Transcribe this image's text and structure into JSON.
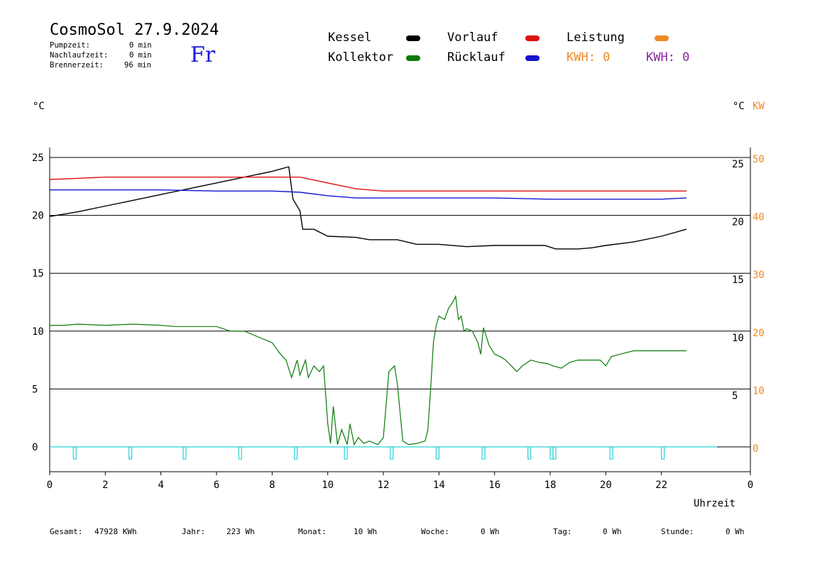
{
  "header": {
    "title": "CosmoSol 27.9.2024",
    "pump_label": "Pumpzeit:",
    "pump_value": "0 min",
    "after_label": "Nachlaufzeit:",
    "after_value": "0 min",
    "burner_label": "Brennerzeit:",
    "burner_value": "96 min",
    "day": "Fr"
  },
  "legend": {
    "kessel": "Kessel",
    "kollektor": "Kollektor",
    "vorlauf": "Vorlauf",
    "ruecklauf": "Rücklauf",
    "leistung": "Leistung",
    "kwh_orange": "KWH: 0",
    "kwh_purple": "KWH: 0"
  },
  "colors": {
    "kessel": "#000000",
    "kollektor": "#0a7a0a",
    "vorlauf": "#e01010",
    "ruecklauf": "#1414d0",
    "leistung": "#f08a24",
    "pump": "#29d3d3"
  },
  "units": {
    "left": "°C",
    "right": "°C",
    "right_kw": "KW"
  },
  "footer": {
    "gesamt_label": "Gesamt:",
    "gesamt_value": "47928 KWh",
    "jahr_label": "Jahr:",
    "jahr_value": "223 Wh",
    "monat_label": "Monat:",
    "monat_value": "10 Wh",
    "woche_label": "Woche:",
    "woche_value": "0 Wh",
    "tag_label": "Tag:",
    "tag_value": "0 Wh",
    "stunde_label": "Stunde:",
    "stunde_value": "0 Wh"
  },
  "chart_data": [
    {
      "type": "line",
      "xlabel": "Uhrzeit",
      "xlim": [
        0,
        24
      ],
      "x_ticks": [
        "0",
        "2",
        "4",
        "6",
        "8",
        "10",
        "12",
        "14",
        "16",
        "18",
        "20",
        "22",
        "0"
      ],
      "ylim": [
        -3,
        27.5
      ],
      "y_ticks_left": [
        "25",
        "20",
        "15",
        "10",
        "5",
        "0"
      ],
      "y_ticks_right_top": [
        "25",
        "20"
      ],
      "y_ticks_right_bottom": [
        "15",
        "10",
        "5"
      ],
      "y_ticks_kw": [
        "50",
        "40",
        "30",
        "20",
        "10",
        "0"
      ],
      "grid": true,
      "series": [
        {
          "name": "Kessel",
          "color": "#000000",
          "points": [
            [
              0,
              19.9
            ],
            [
              1,
              20.3
            ],
            [
              2,
              20.8
            ],
            [
              3,
              21.3
            ],
            [
              4,
              21.8
            ],
            [
              5,
              22.3
            ],
            [
              6,
              22.8
            ],
            [
              7,
              23.3
            ],
            [
              8,
              23.8
            ],
            [
              8.6,
              24.2
            ],
            [
              8.75,
              21.4
            ],
            [
              9.0,
              20.4
            ],
            [
              9.1,
              18.8
            ],
            [
              9.5,
              18.8
            ],
            [
              10.0,
              18.2
            ],
            [
              11.0,
              18.1
            ],
            [
              11.5,
              17.9
            ],
            [
              12.5,
              17.9
            ],
            [
              13.2,
              17.5
            ],
            [
              14.0,
              17.5
            ],
            [
              15.0,
              17.3
            ],
            [
              16.0,
              17.4
            ],
            [
              17.0,
              17.4
            ],
            [
              17.8,
              17.4
            ],
            [
              18.2,
              17.1
            ],
            [
              19.0,
              17.1
            ],
            [
              19.5,
              17.2
            ],
            [
              20.0,
              17.4
            ],
            [
              21.0,
              17.7
            ],
            [
              22.0,
              18.2
            ],
            [
              22.9,
              18.8
            ]
          ]
        },
        {
          "name": "Vorlauf",
          "color": "#e01010",
          "points": [
            [
              0,
              23.1
            ],
            [
              1,
              23.2
            ],
            [
              2,
              23.3
            ],
            [
              4,
              23.3
            ],
            [
              6,
              23.3
            ],
            [
              8,
              23.3
            ],
            [
              9,
              23.3
            ],
            [
              10,
              22.8
            ],
            [
              11,
              22.3
            ],
            [
              12,
              22.1
            ],
            [
              14,
              22.1
            ],
            [
              16,
              22.1
            ],
            [
              18,
              22.1
            ],
            [
              20,
              22.1
            ],
            [
              22,
              22.1
            ],
            [
              22.9,
              22.1
            ]
          ]
        },
        {
          "name": "Rücklauf",
          "color": "#1414d0",
          "points": [
            [
              0,
              22.2
            ],
            [
              4,
              22.2
            ],
            [
              6,
              22.1
            ],
            [
              8,
              22.1
            ],
            [
              9,
              22.0
            ],
            [
              10,
              21.7
            ],
            [
              11,
              21.5
            ],
            [
              12,
              21.5
            ],
            [
              14,
              21.5
            ],
            [
              16,
              21.5
            ],
            [
              18,
              21.4
            ],
            [
              20,
              21.4
            ],
            [
              22,
              21.4
            ],
            [
              22.9,
              21.5
            ]
          ]
        },
        {
          "name": "Kollektor",
          "color": "#0a7a0a",
          "points": [
            [
              0,
              10.5
            ],
            [
              0.5,
              10.5
            ],
            [
              1,
              10.6
            ],
            [
              2,
              10.5
            ],
            [
              3,
              10.6
            ],
            [
              4,
              10.5
            ],
            [
              4.5,
              10.4
            ],
            [
              5.5,
              10.4
            ],
            [
              6.0,
              10.4
            ],
            [
              6.5,
              10.0
            ],
            [
              7.0,
              10.0
            ],
            [
              7.5,
              9.5
            ],
            [
              8.0,
              9.0
            ],
            [
              8.3,
              8.0
            ],
            [
              8.5,
              7.5
            ],
            [
              8.7,
              6.0
            ],
            [
              8.9,
              7.5
            ],
            [
              9.0,
              6.2
            ],
            [
              9.2,
              7.5
            ],
            [
              9.3,
              6.0
            ],
            [
              9.5,
              7.0
            ],
            [
              9.7,
              6.5
            ],
            [
              9.85,
              7.0
            ],
            [
              10.0,
              2.0
            ],
            [
              10.1,
              0.3
            ],
            [
              10.2,
              3.5
            ],
            [
              10.35,
              0.2
            ],
            [
              10.5,
              1.5
            ],
            [
              10.7,
              0.2
            ],
            [
              10.8,
              2.0
            ],
            [
              10.95,
              0.2
            ],
            [
              11.1,
              0.8
            ],
            [
              11.3,
              0.3
            ],
            [
              11.5,
              0.5
            ],
            [
              11.8,
              0.2
            ],
            [
              12.0,
              0.8
            ],
            [
              12.2,
              6.5
            ],
            [
              12.4,
              7.0
            ],
            [
              12.5,
              5.5
            ],
            [
              12.6,
              3.0
            ],
            [
              12.7,
              0.5
            ],
            [
              12.9,
              0.2
            ],
            [
              13.2,
              0.3
            ],
            [
              13.5,
              0.5
            ],
            [
              13.6,
              1.5
            ],
            [
              13.7,
              5.0
            ],
            [
              13.8,
              9.0
            ],
            [
              13.9,
              10.5
            ],
            [
              14.0,
              11.3
            ],
            [
              14.2,
              11.0
            ],
            [
              14.35,
              12.0
            ],
            [
              14.5,
              12.5
            ],
            [
              14.6,
              13.0
            ],
            [
              14.7,
              11.0
            ],
            [
              14.8,
              11.3
            ],
            [
              14.9,
              10.0
            ],
            [
              15.0,
              10.2
            ],
            [
              15.2,
              10.0
            ],
            [
              15.4,
              9.0
            ],
            [
              15.5,
              8.0
            ],
            [
              15.6,
              10.3
            ],
            [
              15.8,
              8.8
            ],
            [
              16.0,
              8.0
            ],
            [
              16.2,
              7.8
            ],
            [
              16.4,
              7.5
            ],
            [
              16.6,
              7.0
            ],
            [
              16.8,
              6.5
            ],
            [
              17.0,
              7.0
            ],
            [
              17.3,
              7.5
            ],
            [
              17.6,
              7.3
            ],
            [
              17.9,
              7.2
            ],
            [
              18.1,
              7.0
            ],
            [
              18.4,
              6.8
            ],
            [
              18.7,
              7.3
            ],
            [
              19.0,
              7.5
            ],
            [
              19.4,
              7.5
            ],
            [
              19.8,
              7.5
            ],
            [
              20.0,
              7.0
            ],
            [
              20.2,
              7.8
            ],
            [
              20.5,
              8.0
            ],
            [
              21.0,
              8.3
            ],
            [
              22.0,
              8.3
            ],
            [
              22.9,
              8.3
            ]
          ]
        }
      ],
      "pump_markers": [
        0.9,
        2.9,
        4.85,
        6.85,
        8.85,
        10.65,
        12.3,
        13.95,
        15.6,
        17.25,
        18.05,
        18.15,
        20.2,
        22.05
      ]
    }
  ]
}
